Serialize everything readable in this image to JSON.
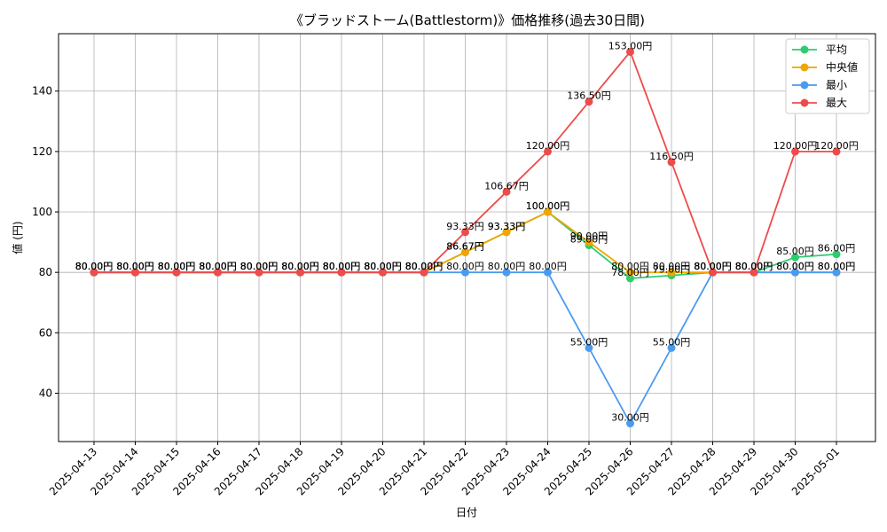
{
  "chart_data": {
    "type": "line",
    "title": "《ブラッドストーム(Battlestorm)》価格推移(過去30日間)",
    "xlabel": "日付",
    "ylabel": "値 (円)",
    "ylim": [
      24,
      159
    ],
    "yticks": [
      40,
      60,
      80,
      100,
      120,
      140
    ],
    "grid": true,
    "legend_position": "top-right",
    "categories": [
      "2025-04-13",
      "2025-04-14",
      "2025-04-15",
      "2025-04-16",
      "2025-04-17",
      "2025-04-18",
      "2025-04-19",
      "2025-04-20",
      "2025-04-21",
      "2025-04-22",
      "2025-04-23",
      "2025-04-24",
      "2025-04-25",
      "2025-04-26",
      "2025-04-27",
      "2025-04-28",
      "2025-04-29",
      "2025-04-30",
      "2025-05-01"
    ],
    "series": [
      {
        "name": "平均",
        "color": "#2ecc71",
        "values": [
          80,
          80,
          80,
          80,
          80,
          80,
          80,
          80,
          80,
          86.67,
          93.33,
          100,
          89,
          78,
          79,
          80,
          80,
          85,
          86
        ],
        "labels": [
          "80.00円",
          "80.00円",
          "80.00円",
          "80.00円",
          "80.00円",
          "80.00円",
          "80.00円",
          "80.00円",
          "80.00円",
          "86.67円",
          "93.33円",
          "100.00円",
          "89.00円",
          "78.00円",
          "79.00円",
          "80.00円",
          "80.00円",
          "85.00円",
          "86.00円"
        ]
      },
      {
        "name": "中央値",
        "color": "#f0a500",
        "values": [
          80,
          80,
          80,
          80,
          80,
          80,
          80,
          80,
          80,
          86.67,
          93.33,
          100,
          90,
          80,
          80,
          80,
          80,
          80,
          80
        ],
        "labels": [
          "80.00円",
          "80.00円",
          "80.00円",
          "80.00円",
          "80.00円",
          "80.00円",
          "80.00円",
          "80.00円",
          "80.00円",
          "86.67円",
          "93.33円",
          "100.00円",
          "90.00円",
          "80.00円",
          "80.00円",
          "80.00円",
          "80.00円",
          "80.00円",
          "80.00円"
        ]
      },
      {
        "name": "最小",
        "color": "#4a9af0",
        "values": [
          80,
          80,
          80,
          80,
          80,
          80,
          80,
          80,
          80,
          80,
          80,
          80,
          55,
          30,
          55,
          80,
          80,
          80,
          80
        ],
        "labels": [
          "80.00円",
          "80.00円",
          "80.00円",
          "80.00円",
          "80.00円",
          "80.00円",
          "80.00円",
          "80.00円",
          "80.00円",
          "80.00円",
          "80.00円",
          "80.00円",
          "55.00円",
          "30.00円",
          "55.00円",
          "80.00円",
          "80.00円",
          "80.00円",
          "80.00円"
        ]
      },
      {
        "name": "最大",
        "color": "#ee4b4b",
        "values": [
          80,
          80,
          80,
          80,
          80,
          80,
          80,
          80,
          80,
          93.33,
          106.67,
          120,
          136.5,
          153,
          116.5,
          80,
          80,
          120,
          120
        ],
        "labels": [
          "80.00円",
          "80.00円",
          "80.00円",
          "80.00円",
          "80.00円",
          "80.00円",
          "80.00円",
          "80.00円",
          "80.00円",
          "93.33円",
          "106.67円",
          "120.00円",
          "136.50円",
          "153.00円",
          "116.50円",
          "80.00円",
          "80.00円",
          "120.00円",
          "120.00円"
        ]
      }
    ]
  }
}
